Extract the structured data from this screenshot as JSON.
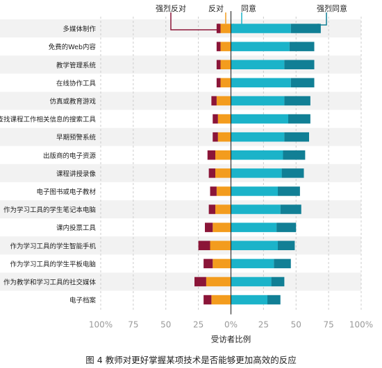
{
  "chart_data": {
    "type": "bar",
    "subtype": "diverging-stacked",
    "categories": [
      "多媒体制作",
      "免费的Web内容",
      "教学管理系统",
      "在线协作工具",
      "仿真或教育游戏",
      "查找课程工作相关信息的搜索工具",
      "早期预警系统",
      "出版商的电子资源",
      "课程讲授录像",
      "电子图书或电子教材",
      "作为学习工具的学生笔记本电脑",
      "课内投票工具",
      "作为学习工具的学生智能手机",
      "作为学习工具的学生平板电脑",
      "作为教学和学习工具的社交媒体",
      "电子档案"
    ],
    "series": [
      {
        "name": "强烈反对",
        "direction": "left",
        "color": "#8b1538",
        "values": [
          3,
          3,
          3,
          3,
          4,
          4,
          4,
          6,
          5,
          5,
          5,
          6,
          9,
          7,
          9,
          6
        ]
      },
      {
        "name": "反对",
        "direction": "left",
        "color": "#f39c1e",
        "values": [
          8,
          8,
          8,
          8,
          11,
          10,
          10,
          12,
          12,
          11,
          12,
          14,
          16,
          14,
          19,
          15
        ]
      },
      {
        "name": "同意",
        "direction": "right",
        "color": "#1bb3c9",
        "values": [
          46,
          45,
          41,
          46,
          41,
          44,
          41,
          40,
          39,
          36,
          38,
          35,
          36,
          33,
          31,
          28
        ]
      },
      {
        "name": "强烈同意",
        "direction": "right",
        "color": "#117f95",
        "values": [
          23,
          19,
          23,
          18,
          20,
          17,
          19,
          17,
          17,
          17,
          16,
          15,
          13,
          13,
          10,
          10
        ]
      }
    ],
    "xlabel": "受访者比例",
    "xticks": [
      "100%",
      "75",
      "50",
      "25",
      "0%",
      "25",
      "50",
      "75",
      "100%"
    ],
    "xlim": [
      -100,
      100
    ],
    "grid": true,
    "legend": "top-right, callouts above bars"
  },
  "caption": "图 4  教师对更好掌握某项技术是否能够更加高效的反应"
}
